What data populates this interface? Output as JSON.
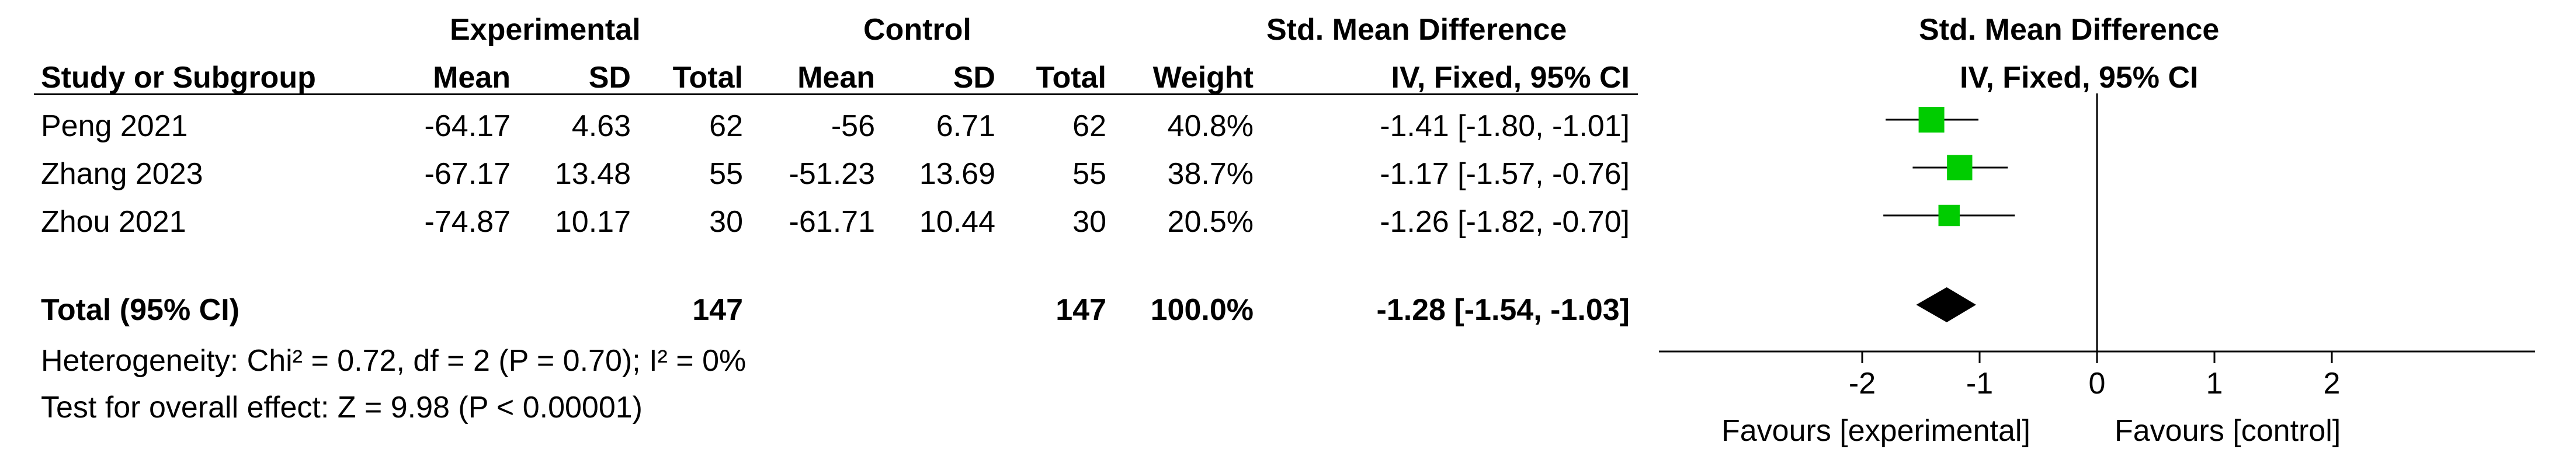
{
  "header": {
    "group_experimental": "Experimental",
    "group_control": "Control",
    "effect_title": "Std. Mean Difference",
    "plot_title": "Std. Mean Difference",
    "col_study": "Study or Subgroup",
    "col_mean_e": "Mean",
    "col_sd_e": "SD",
    "col_total_e": "Total",
    "col_mean_c": "Mean",
    "col_sd_c": "SD",
    "col_total_c": "Total",
    "col_weight": "Weight",
    "col_method": "IV, Fixed, 95% CI",
    "plot_method": "IV, Fixed, 95% CI"
  },
  "studies": [
    {
      "name": "Peng 2021",
      "mean_e": "-64.17",
      "sd_e": "4.63",
      "total_e": "62",
      "mean_c": "-56",
      "sd_c": "6.71",
      "total_c": "62",
      "weight": "40.8%",
      "ci_text": "-1.41 [-1.80, -1.01]"
    },
    {
      "name": "Zhang 2023",
      "mean_e": "-67.17",
      "sd_e": "13.48",
      "total_e": "55",
      "mean_c": "-51.23",
      "sd_c": "13.69",
      "total_c": "55",
      "weight": "38.7%",
      "ci_text": "-1.17 [-1.57, -0.76]"
    },
    {
      "name": "Zhou 2021",
      "mean_e": "-74.87",
      "sd_e": "10.17",
      "total_e": "30",
      "mean_c": "-61.71",
      "sd_c": "10.44",
      "total_c": "30",
      "weight": "20.5%",
      "ci_text": "-1.26 [-1.82, -0.70]"
    }
  ],
  "total": {
    "label": "Total (95% CI)",
    "total_e": "147",
    "total_c": "147",
    "weight": "100.0%",
    "ci_text": "-1.28 [-1.54, -1.03]"
  },
  "heterogeneity": "Heterogeneity: Chi² = 0.72, df = 2 (P = 0.70); I² = 0%",
  "overall_effect": "Test for overall effect: Z = 9.98 (P < 0.00001)",
  "favours_left": "Favours [experimental]",
  "favours_right": "Favours [control]",
  "chart_data": {
    "type": "forest",
    "xlim": [
      -3.85,
      3.85
    ],
    "ticks": [
      -2,
      -1,
      0,
      1,
      2
    ],
    "tick_labels": [
      "-2",
      "-1",
      "0",
      "1",
      "2"
    ],
    "marker_color": "#00cc00",
    "studies": [
      {
        "name": "Peng 2021",
        "est": -1.41,
        "lo": -1.8,
        "hi": -1.01,
        "weight": 40.8
      },
      {
        "name": "Zhang 2023",
        "est": -1.17,
        "lo": -1.57,
        "hi": -0.76,
        "weight": 38.7
      },
      {
        "name": "Zhou 2021",
        "est": -1.26,
        "lo": -1.82,
        "hi": -0.7,
        "weight": 20.5
      }
    ],
    "pooled": {
      "est": -1.28,
      "lo": -1.54,
      "hi": -1.03
    }
  }
}
